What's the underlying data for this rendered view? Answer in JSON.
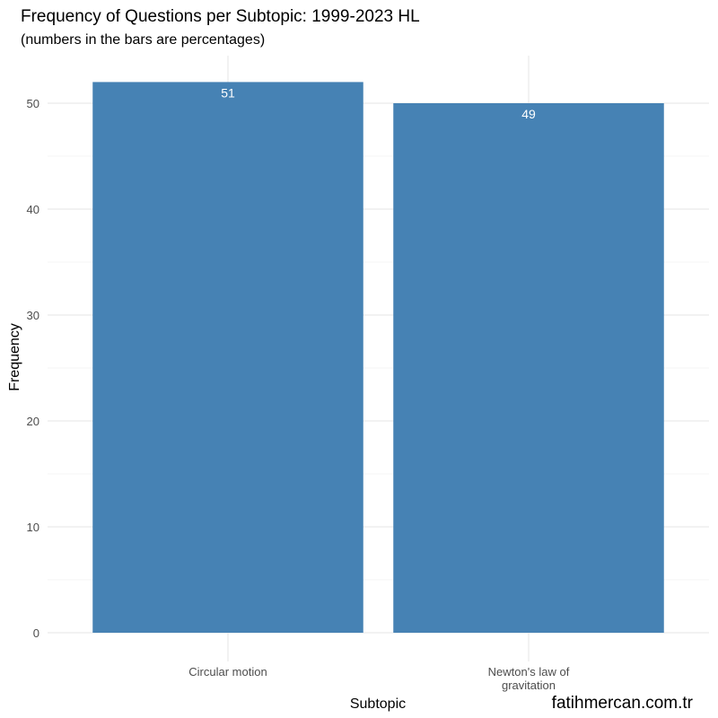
{
  "chart_data": {
    "type": "bar",
    "title": "Frequency of Questions per Subtopic: 1999-2023 HL",
    "subtitle": "(numbers in the bars are percentages)",
    "xlabel": "Subtopic",
    "ylabel": "Frequency",
    "categories": [
      "Circular motion",
      "Newton's law of\ngravitation"
    ],
    "values": [
      52,
      50
    ],
    "bar_labels": [
      "51",
      "49"
    ],
    "ylim": [
      0,
      55
    ],
    "yticks": [
      0,
      10,
      20,
      30,
      40,
      50
    ],
    "ytick_labels": [
      "0",
      "10",
      "20",
      "30",
      "40",
      "50"
    ],
    "grid": true,
    "bar_color": "#4682B4"
  },
  "watermark": "fatihmercan.com.tr"
}
